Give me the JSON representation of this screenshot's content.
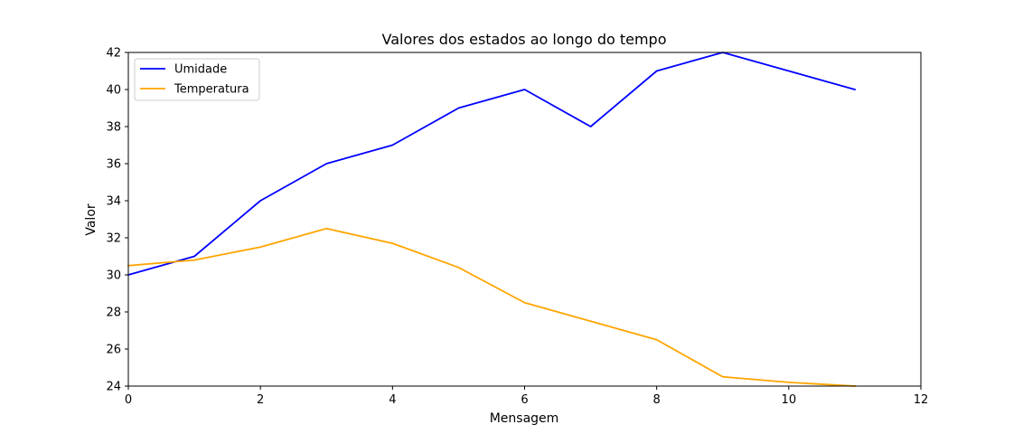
{
  "chart_data": {
    "type": "line",
    "title": "Valores dos estados ao longo do tempo",
    "xlabel": "Mensagem",
    "ylabel": "Valor",
    "xlim": [
      0,
      12
    ],
    "ylim": [
      24,
      42
    ],
    "xticks": [
      0,
      2,
      4,
      6,
      8,
      10,
      12
    ],
    "yticks": [
      24,
      26,
      28,
      30,
      32,
      34,
      36,
      38,
      40,
      42
    ],
    "grid": false,
    "legend_position": "top-left",
    "x": [
      0,
      1,
      2,
      3,
      4,
      5,
      6,
      7,
      8,
      9,
      10,
      11
    ],
    "series": [
      {
        "name": "Umidade",
        "color": "#0000ff",
        "values": [
          30,
          31,
          34,
          36,
          37,
          39,
          40,
          38,
          41,
          42,
          41,
          40
        ]
      },
      {
        "name": "Temperatura",
        "color": "#ffa500",
        "values": [
          30.5,
          30.8,
          31.5,
          32.5,
          31.7,
          30.4,
          28.5,
          27.5,
          26.5,
          24.5,
          24.2,
          24.0
        ]
      }
    ]
  }
}
